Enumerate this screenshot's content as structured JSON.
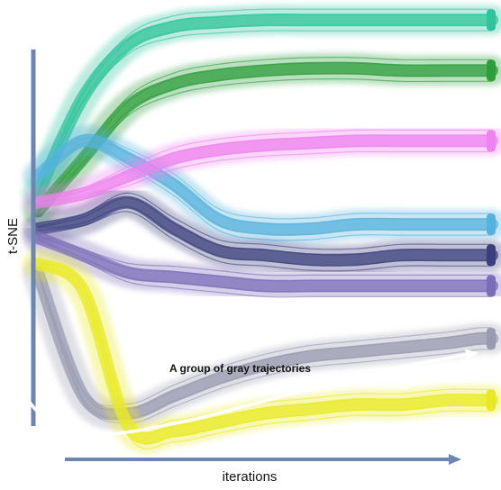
{
  "chart_data": {
    "type": "line",
    "title": "",
    "xlabel": "iterations",
    "ylabel": "t-SNE",
    "grid": false,
    "legend": "none",
    "annotation": "A group of gray trajectories",
    "x": [
      0,
      0.1,
      0.2,
      0.3,
      0.4,
      0.5,
      0.6,
      0.7,
      0.8,
      0.9,
      0.97,
      1.0
    ],
    "xlim": [
      0,
      1
    ],
    "ylim": [
      0,
      1
    ],
    "series": [
      {
        "color": "#2fc49a",
        "values": [
          0.58,
          0.8,
          0.92,
          0.96,
          0.97,
          0.975,
          0.975,
          0.975,
          0.975,
          0.975,
          0.975,
          0.975
        ]
      },
      {
        "color": "#2e9e3a",
        "values": [
          0.54,
          0.66,
          0.78,
          0.83,
          0.85,
          0.86,
          0.865,
          0.865,
          0.86,
          0.86,
          0.86,
          0.86
        ]
      },
      {
        "color": "#55b2de",
        "values": [
          0.62,
          0.7,
          0.66,
          0.6,
          0.52,
          0.5,
          0.5,
          0.51,
          0.51,
          0.51,
          0.51,
          0.51
        ]
      },
      {
        "color": "#ee82ee",
        "values": [
          0.56,
          0.58,
          0.62,
          0.66,
          0.68,
          0.69,
          0.695,
          0.7,
          0.7,
          0.7,
          0.7,
          0.7
        ]
      },
      {
        "color": "#3a3f7c",
        "values": [
          0.5,
          0.52,
          0.56,
          0.5,
          0.45,
          0.44,
          0.43,
          0.43,
          0.44,
          0.44,
          0.44,
          0.44
        ]
      },
      {
        "color": "#7b6eb8",
        "values": [
          0.48,
          0.44,
          0.4,
          0.39,
          0.38,
          0.37,
          0.37,
          0.37,
          0.37,
          0.37,
          0.37,
          0.37
        ]
      },
      {
        "color": "#9a9ab0",
        "values": [
          0.4,
          0.12,
          0.08,
          0.12,
          0.16,
          0.19,
          0.21,
          0.22,
          0.23,
          0.24,
          0.25,
          0.25
        ]
      },
      {
        "color": "#e9e923",
        "values": [
          0.42,
          0.36,
          0.05,
          0.04,
          0.06,
          0.08,
          0.09,
          0.1,
          0.1,
          0.11,
          0.11,
          0.11
        ]
      }
    ]
  }
}
